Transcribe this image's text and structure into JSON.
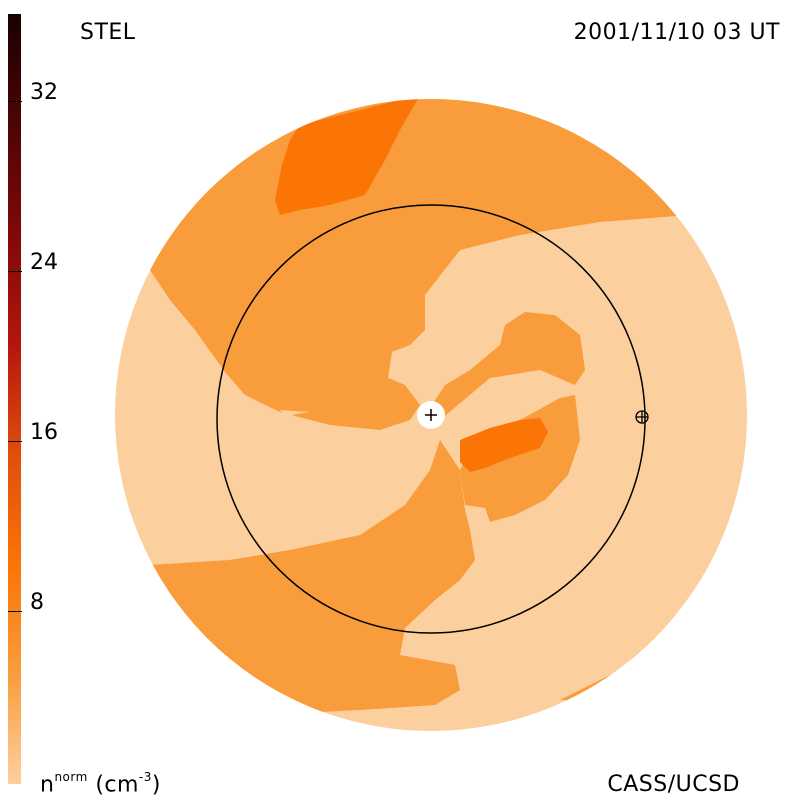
{
  "header": {
    "source": "STEL",
    "timestamp": "2001/11/10 03 UT"
  },
  "footer": {
    "quantity": "n",
    "superscript": "norm",
    "unit_text": "(cm",
    "unit_sup": "-3",
    "unit_close": ")",
    "credit": "CASS/UCSD"
  },
  "colorbar": {
    "tick_labels": [
      "32",
      "24",
      "16",
      "8"
    ],
    "colors": [
      "#fccf9e",
      "#f99c3c",
      "#fb7406",
      "#e04e0c",
      "#b2160c",
      "#800808",
      "#4e0404",
      "#1a0101"
    ]
  },
  "map": {
    "colors": {
      "light": "#fccf9e",
      "medium": "#f99c3c",
      "dark": "#fb7406"
    },
    "markers": {
      "sun": "sun-marker",
      "earth": "earth-marker"
    }
  }
}
